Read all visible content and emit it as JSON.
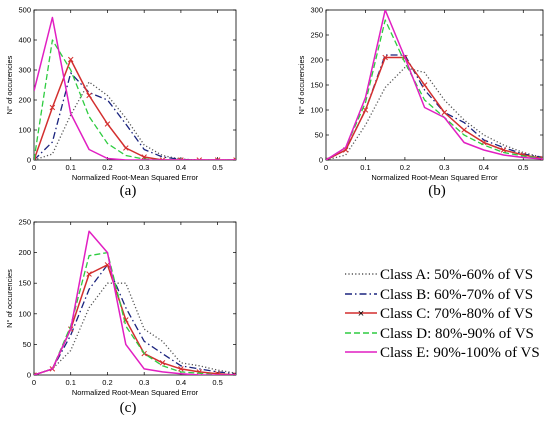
{
  "chart_data": [
    {
      "type": "line",
      "panel_label": "(a)",
      "xlabel": "Normalized Root-Mean Squared Error",
      "ylabel": "N° of occurencies",
      "xlim": [
        0,
        0.55
      ],
      "ylim": [
        0,
        500
      ],
      "xticks": [
        0,
        0.1,
        0.2,
        0.3,
        0.4,
        0.5
      ],
      "xtick_labels": [
        "0",
        "0.1",
        "0.2",
        "0.3",
        "0.4",
        "0.5"
      ],
      "yticks": [
        0,
        100,
        200,
        300,
        400,
        500
      ],
      "ytick_labels": [
        "0",
        "100",
        "200",
        "300",
        "400",
        "500"
      ],
      "x": [
        0,
        0.05,
        0.1,
        0.15,
        0.2,
        0.25,
        0.3,
        0.35,
        0.4,
        0.45,
        0.5,
        0.55
      ],
      "series": [
        {
          "name": "Class A: 50%-60% of VS",
          "values": [
            0,
            20,
            150,
            260,
            215,
            140,
            50,
            15,
            3,
            0,
            0,
            0
          ]
        },
        {
          "name": "Class B: 60%-70% of VS",
          "values": [
            0,
            60,
            290,
            225,
            200,
            120,
            35,
            10,
            2,
            0,
            0,
            0
          ]
        },
        {
          "name": "Class C: 70%-80% of VS",
          "values": [
            0,
            175,
            335,
            215,
            120,
            40,
            10,
            0,
            0,
            0,
            0,
            0
          ]
        },
        {
          "name": "Class D: 80%-90% of VS",
          "values": [
            0,
            400,
            300,
            145,
            55,
            15,
            3,
            0,
            0,
            0,
            0,
            0
          ]
        },
        {
          "name": "Class E: 90%-100% of VS",
          "values": [
            230,
            475,
            155,
            35,
            5,
            0,
            0,
            0,
            0,
            0,
            0,
            0
          ]
        }
      ]
    },
    {
      "type": "line",
      "panel_label": "(b)",
      "xlabel": "Normalized Root-Mean Squared Error",
      "ylabel": "N° of occurencies",
      "xlim": [
        0,
        0.55
      ],
      "ylim": [
        0,
        300
      ],
      "xticks": [
        0,
        0.1,
        0.2,
        0.3,
        0.4,
        0.5
      ],
      "xtick_labels": [
        "0",
        "0.1",
        "0.2",
        "0.3",
        "0.4",
        "0.5"
      ],
      "yticks": [
        0,
        50,
        100,
        150,
        200,
        250,
        300
      ],
      "ytick_labels": [
        "0",
        "50",
        "100",
        "150",
        "200",
        "250",
        "300"
      ],
      "x": [
        0,
        0.05,
        0.1,
        0.15,
        0.2,
        0.25,
        0.3,
        0.35,
        0.4,
        0.45,
        0.5,
        0.55
      ],
      "series": [
        {
          "name": "Class A: 50%-60% of VS",
          "values": [
            0,
            10,
            70,
            145,
            185,
            175,
            120,
            80,
            50,
            30,
            15,
            5
          ]
        },
        {
          "name": "Class B: 60%-70% of VS",
          "values": [
            0,
            20,
            100,
            210,
            210,
            140,
            95,
            75,
            40,
            25,
            12,
            5
          ]
        },
        {
          "name": "Class C: 70%-80% of VS",
          "values": [
            0,
            20,
            100,
            205,
            205,
            150,
            95,
            60,
            35,
            20,
            10,
            3
          ]
        },
        {
          "name": "Class D: 80%-90% of VS",
          "values": [
            0,
            25,
            115,
            280,
            195,
            120,
            85,
            50,
            30,
            15,
            8,
            3
          ]
        },
        {
          "name": "Class E: 90%-100% of VS",
          "values": [
            0,
            25,
            125,
            300,
            205,
            105,
            85,
            35,
            20,
            10,
            5,
            2
          ]
        }
      ]
    },
    {
      "type": "line",
      "panel_label": "(c)",
      "xlabel": "Normalized Root-Mean Squared Error",
      "ylabel": "N° of occurencies",
      "xlim": [
        0,
        0.55
      ],
      "ylim": [
        0,
        250
      ],
      "xticks": [
        0,
        0.1,
        0.2,
        0.3,
        0.4,
        0.5
      ],
      "xtick_labels": [
        "0",
        "0.1",
        "0.2",
        "0.3",
        "0.4",
        "0.5"
      ],
      "yticks": [
        0,
        50,
        100,
        150,
        200,
        250
      ],
      "ytick_labels": [
        "0",
        "50",
        "100",
        "150",
        "200",
        "250"
      ],
      "x": [
        0,
        0.05,
        0.1,
        0.15,
        0.2,
        0.25,
        0.3,
        0.35,
        0.4,
        0.45,
        0.5,
        0.55
      ],
      "series": [
        {
          "name": "Class A: 50%-60% of VS",
          "values": [
            0,
            10,
            40,
            110,
            150,
            150,
            75,
            55,
            20,
            15,
            8,
            3
          ]
        },
        {
          "name": "Class B: 60%-70% of VS",
          "values": [
            0,
            10,
            65,
            140,
            180,
            110,
            55,
            35,
            15,
            10,
            5,
            2
          ]
        },
        {
          "name": "Class C: 70%-80% of VS",
          "values": [
            0,
            10,
            75,
            165,
            180,
            90,
            35,
            20,
            10,
            5,
            2,
            0
          ]
        },
        {
          "name": "Class D: 80%-90% of VS",
          "values": [
            0,
            10,
            80,
            195,
            200,
            80,
            35,
            15,
            5,
            3,
            0,
            0
          ]
        },
        {
          "name": "Class E: 90%-100% of VS",
          "values": [
            0,
            10,
            75,
            235,
            200,
            50,
            10,
            5,
            2,
            0,
            0,
            0
          ]
        }
      ]
    }
  ],
  "legend": {
    "entries": [
      {
        "label": "Class A: 50%-60% of VS",
        "color": "#555555",
        "dash": "dotted",
        "marker": "none"
      },
      {
        "label": "Class B: 60%-70% of VS",
        "color": "#1a237e",
        "dash": "dashdot",
        "marker": "none"
      },
      {
        "label": "Class C: 70%-80% of VS",
        "color": "#d32f2f",
        "dash": "solid",
        "marker": "x"
      },
      {
        "label": "Class D: 80%-90% of VS",
        "color": "#2ecc40",
        "dash": "dashed",
        "marker": "none"
      },
      {
        "label": "Class E: 90%-100% of VS",
        "color": "#e11fc2",
        "dash": "solid",
        "marker": "none"
      }
    ]
  }
}
